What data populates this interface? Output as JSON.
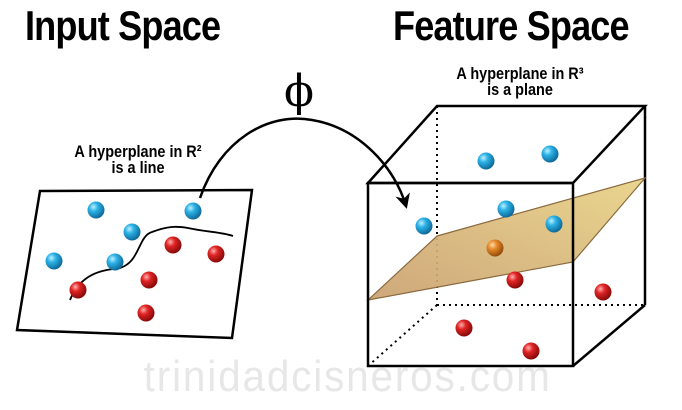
{
  "input_title": "Input Space",
  "feature_title": "Feature Space",
  "phi_symbol": "ϕ",
  "input_caption_line1": "A hyperplane in R²",
  "input_caption_line2": "is a line",
  "feature_caption_line1": "A hyperplane in R³",
  "feature_caption_line2": "is a plane",
  "watermark": "trinidadcisneros.com",
  "colors": {
    "blue_point": "#1b9bd0",
    "red_point": "#d11a1a",
    "orange_point": "#e07a1a",
    "plane_fill": "#d7b577",
    "line": "#000000"
  }
}
